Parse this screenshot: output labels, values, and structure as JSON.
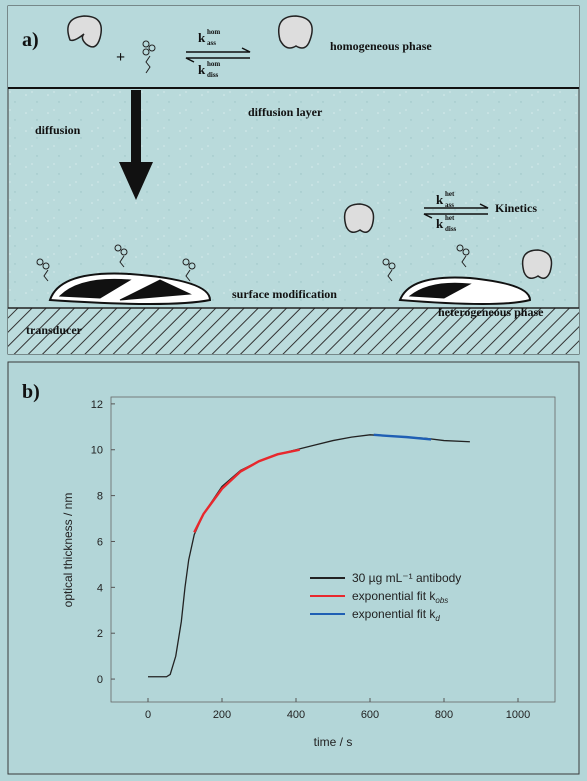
{
  "panel_a": {
    "label": "a)",
    "plus": "+",
    "k_ass_hom": {
      "k": "k",
      "sub": "ass",
      "sup": "hom"
    },
    "k_diss_hom": {
      "k": "k",
      "sub": "diss",
      "sup": "hom"
    },
    "homogeneous_phase": "homogeneous phase",
    "diffusion_layer": "diffusion layer",
    "diffusion": "diffusion",
    "k_ass_het": {
      "k": "k",
      "sub": "ass",
      "sup": "het"
    },
    "k_diss_het": {
      "k": "k",
      "sub": "diss",
      "sup": "het"
    },
    "kinetics": "Kinetics",
    "surface_modification": "surface modification",
    "heterogeneous_phase": "heterogeneous phase",
    "transducer": "transducer"
  },
  "chart_data": {
    "type": "line",
    "label": "b)",
    "xlabel": "time / s",
    "ylabel": "optical thickness / nm",
    "xlim": [
      -100,
      1100
    ],
    "ylim": [
      -1,
      12.3
    ],
    "xticks": [
      0,
      200,
      400,
      600,
      800,
      1000
    ],
    "yticks": [
      0,
      2,
      4,
      6,
      8,
      10,
      12
    ],
    "series": [
      {
        "name": "30 µg mL⁻¹ antibody",
        "color": "#222222",
        "x": [
          0,
          50,
          60,
          75,
          90,
          100,
          110,
          125,
          150,
          200,
          250,
          300,
          350,
          400,
          450,
          500,
          550,
          600,
          650,
          700,
          750,
          800,
          870
        ],
        "values": [
          0.1,
          0.1,
          0.2,
          1,
          2.5,
          4,
          5.2,
          6.3,
          7.2,
          8.4,
          9.1,
          9.5,
          9.8,
          10,
          10.2,
          10.4,
          10.55,
          10.65,
          10.6,
          10.55,
          10.5,
          10.4,
          10.35
        ]
      },
      {
        "name": "exponential fit k",
        "name_subscript": "obs",
        "color": "#e8282d",
        "x": [
          125,
          150,
          200,
          250,
          300,
          350,
          410
        ],
        "values": [
          6.4,
          7.2,
          8.3,
          9.05,
          9.5,
          9.8,
          10
        ]
      },
      {
        "name": "exponential fit k",
        "name_subscript": "d",
        "color": "#1f5fb4",
        "x": [
          610,
          650,
          700,
          765
        ],
        "values": [
          10.65,
          10.6,
          10.55,
          10.45
        ]
      }
    ]
  }
}
